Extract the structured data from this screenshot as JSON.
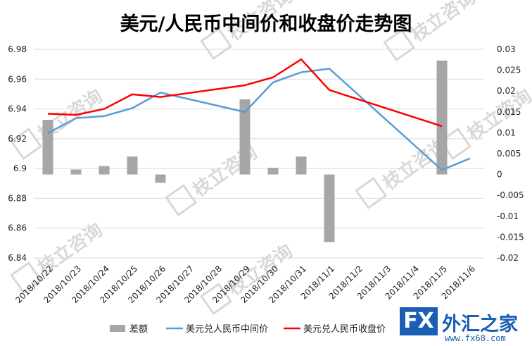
{
  "chart_data": {
    "type": "bar+line",
    "title": "美元/人民币中间价和收盘价走势图",
    "categories": [
      "2018/10/22",
      "2018/10/23",
      "2018/10/24",
      "2018/10/25",
      "2018/10/26",
      "2018/10/27",
      "2018/10/28",
      "2018/10/29",
      "2018/10/30",
      "2018/10/31",
      "2018/11/1",
      "2018/11/2",
      "2018/11/3",
      "2018/11/4",
      "2018/11/5",
      "2018/11/6"
    ],
    "left_axis": {
      "ylim": [
        6.84,
        6.98
      ],
      "ticks": [
        "6.84",
        "6.86",
        "6.88",
        "6.9",
        "6.92",
        "6.94",
        "6.96",
        "6.98"
      ],
      "tick_values": [
        6.84,
        6.86,
        6.88,
        6.9,
        6.92,
        6.94,
        6.96,
        6.98
      ]
    },
    "right_axis": {
      "ylim": [
        -0.02,
        0.03
      ],
      "ticks": [
        "-0.02",
        "-0.015",
        "-0.01",
        "-0.005",
        "0",
        "0.005",
        "0.01",
        "0.015",
        "0.02",
        "0.025",
        "0.03"
      ],
      "tick_values": [
        -0.02,
        -0.015,
        -0.01,
        -0.005,
        0,
        0.005,
        0.01,
        0.015,
        0.02,
        0.025,
        0.03
      ]
    },
    "series": [
      {
        "name": "差额",
        "type": "bar",
        "axis": "right",
        "color": "#a6a6a6",
        "values": [
          0.0131,
          0.0012,
          0.002,
          0.0043,
          -0.002,
          null,
          null,
          0.018,
          0.0016,
          0.0043,
          -0.0162,
          null,
          null,
          null,
          0.0273,
          null
        ]
      },
      {
        "name": "美元兑人民币中间价",
        "type": "line",
        "axis": "left",
        "color": "#5b9bd5",
        "values": [
          6.9237,
          6.9338,
          6.9352,
          6.9405,
          6.951,
          null,
          null,
          6.9379,
          6.9578,
          6.9646,
          6.967,
          null,
          null,
          null,
          6.899,
          6.9068
        ]
      },
      {
        "name": "美元兑人民币收盘价",
        "type": "line",
        "axis": "left",
        "color": "#ff0000",
        "values": [
          6.9368,
          6.936,
          6.94,
          6.9498,
          6.948,
          null,
          null,
          6.9559,
          6.9612,
          6.9733,
          6.9527,
          null,
          null,
          null,
          6.9284,
          null
        ]
      }
    ],
    "legend_position": "bottom",
    "grid": true
  },
  "watermark": {
    "text": "枝立咨询"
  }
}
